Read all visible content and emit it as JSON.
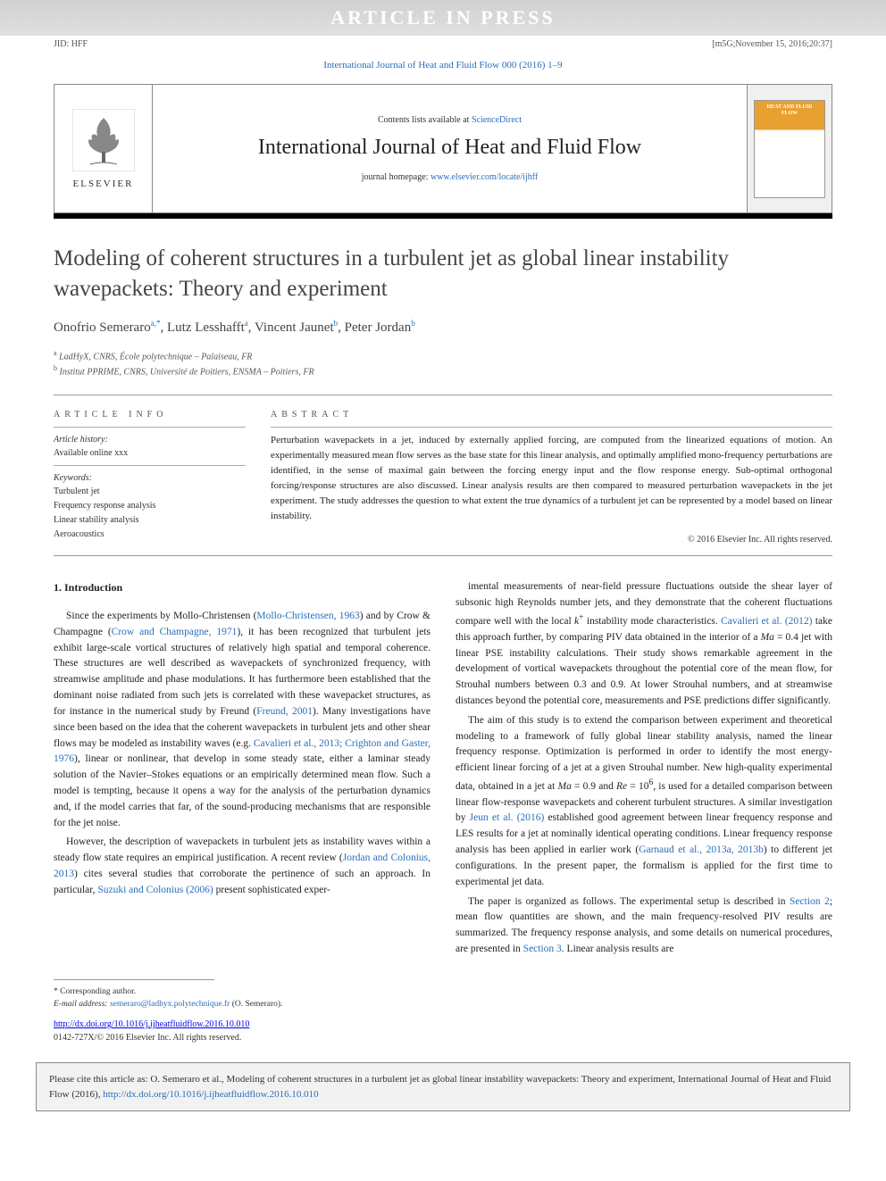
{
  "watermark": "ARTICLE IN PRESS",
  "header_meta": {
    "left": "JID: HFF",
    "right": "[m5G;November 15, 2016;20:37]"
  },
  "journal_ref": "International Journal of Heat and Fluid Flow 000 (2016) 1–9",
  "journal_box": {
    "elsevier": "ELSEVIER",
    "contents_prefix": "Contents lists available at ",
    "contents_link": "ScienceDirect",
    "journal_name": "International Journal of Heat and Fluid Flow",
    "homepage_prefix": "journal homepage: ",
    "homepage_link": "www.elsevier.com/locate/ijhff",
    "cover_text": "HEAT AND FLUID FLOW"
  },
  "title": "Modeling of coherent structures in a turbulent jet as global linear instability wavepackets: Theory and experiment",
  "authors_html": "Onofrio Semeraro<sup>a,*</sup>, Lutz Lesshafft<sup>a</sup>, Vincent Jaunet<sup>b</sup>, Peter Jordan<sup>b</sup>",
  "affiliations": [
    {
      "sup": "a",
      "text": "LadHyX, CNRS, École polytechnique – Palaiseau, FR"
    },
    {
      "sup": "b",
      "text": "Institut PPRIME, CNRS, Université de Poitiers, ENSMA – Poitiers, FR"
    }
  ],
  "labels": {
    "article_info": "ARTICLE INFO",
    "abstract": "ABSTRACT"
  },
  "article_info": {
    "history_label": "Article history:",
    "history_line": "Available online xxx",
    "keywords_label": "Keywords:",
    "keywords": [
      "Turbulent jet",
      "Frequency response analysis",
      "Linear stability analysis",
      "Aeroacoustics"
    ]
  },
  "abstract": "Perturbation wavepackets in a jet, induced by externally applied forcing, are computed from the linearized equations of motion. An experimentally measured mean flow serves as the base state for this linear analysis, and optimally amplified mono-frequency perturbations are identified, in the sense of maximal gain between the forcing energy input and the flow response energy. Sub-optimal orthogonal forcing/response structures are also discussed. Linear analysis results are then compared to measured perturbation wavepackets in the jet experiment. The study addresses the question to what extent the true dynamics of a turbulent jet can be represented by a model based on linear instability.",
  "abstract_copyright": "© 2016 Elsevier Inc. All rights reserved.",
  "body": {
    "heading": "1. Introduction",
    "col1": [
      "Since the experiments by Mollo-Christensen (<span class=\"link\">Mollo-Christensen, 1963</span>) and by Crow & Champagne (<span class=\"link\">Crow and Champagne, 1971</span>), it has been recognized that turbulent jets exhibit large-scale vortical structures of relatively high spatial and temporal coherence. These structures are well described as wavepackets of synchronized frequency, with streamwise amplitude and phase modulations. It has furthermore been established that the dominant noise radiated from such jets is correlated with these wavepacket structures, as for instance in the numerical study by Freund (<span class=\"link\">Freund, 2001</span>). Many investigations have since been based on the idea that the coherent wavepackets in turbulent jets and other shear flows may be modeled as instability waves (e.g. <span class=\"link\">Cavalieri et al., 2013; Crighton and Gaster, 1976</span>), linear or nonlinear, that develop in some steady state, either a laminar steady solution of the Navier–Stokes equations or an empirically determined mean flow. Such a model is tempting, because it opens a way for the analysis of the perturbation dynamics and, if the model carries that far, of the sound-producing mechanisms that are responsible for the jet noise.",
      "However, the description of wavepackets in turbulent jets as instability waves within a steady flow state requires an empirical justification. A recent review (<span class=\"link\">Jordan and Colonius, 2013</span>) cites several studies that corroborate the pertinence of such an approach. In particular, <span class=\"link\">Suzuki and Colonius (2006)</span> present sophisticated exper-"
    ],
    "col2": [
      "imental measurements of near-field pressure fluctuations outside the shear layer of subsonic high Reynolds number jets, and they demonstrate that the coherent fluctuations compare well with the local <em>k</em><sup>+</sup> instability mode characteristics. <span class=\"link\">Cavalieri et al. (2012)</span> take this approach further, by comparing PIV data obtained in the interior of a <em>Ma</em> = 0.4 jet with linear PSE instability calculations. Their study shows remarkable agreement in the development of vortical wavepackets throughout the potential core of the mean flow, for Strouhal numbers between 0.3 and 0.9. At lower Strouhal numbers, and at streamwise distances beyond the potential core, measurements and PSE predictions differ significantly.",
      "The aim of this study is to extend the comparison between experiment and theoretical modeling to a framework of fully global linear stability analysis, named the linear frequency response. Optimization is performed in order to identify the most energy-efficient linear forcing of a jet at a given Strouhal number. New high-quality experimental data, obtained in a jet at <em>Ma</em> = 0.9 and <em>Re</em> = 10<sup>6</sup>, is used for a detailed comparison between linear flow-response wavepackets and coherent turbulent structures. A similar investigation by <span class=\"link\">Jeun et al. (2016)</span> established good agreement between linear frequency response and LES results for a jet at nominally identical operating conditions. Linear frequency response analysis has been applied in earlier work (<span class=\"link\">Garnaud et al., 2013a, 2013b</span>) to different jet configurations. In the present paper, the formalism is applied for the first time to experimental jet data.",
      "The paper is organized as follows. The experimental setup is described in <span class=\"link\">Section 2</span>; mean flow quantities are shown, and the main frequency-resolved PIV results are summarized. The frequency response analysis, and some details on numerical procedures, are presented in <span class=\"link\">Section 3</span>. Linear analysis results are"
    ]
  },
  "corresponding": {
    "asterisk": "* Corresponding author.",
    "email_label": "E-mail address:",
    "email": "semeraro@ladhyx.polytechnique.fr",
    "email_suffix": "(O. Semeraro)."
  },
  "doi": "http://dx.doi.org/10.1016/j.ijheatfluidflow.2016.10.010",
  "issn_copyright": "0142-727X/© 2016 Elsevier Inc. All rights reserved.",
  "cite_box": {
    "text": "Please cite this article as: O. Semeraro et al., Modeling of coherent structures in a turbulent jet as global linear instability wavepackets: Theory and experiment, International Journal of Heat and Fluid Flow (2016), ",
    "link": "http://dx.doi.org/10.1016/j.ijheatfluidflow.2016.10.010"
  },
  "colors": {
    "link": "#2a6ebb",
    "text": "#222222",
    "banner_bg": "#d0d0d0",
    "cover_orange": "#e8a030",
    "page_bg": "#ffffff",
    "cite_bg": "#f2f2f2"
  },
  "typography": {
    "title_fontsize": 25,
    "journal_name_fontsize": 24,
    "body_fontsize": 11.5,
    "abstract_fontsize": 11,
    "meta_fontsize": 10
  }
}
